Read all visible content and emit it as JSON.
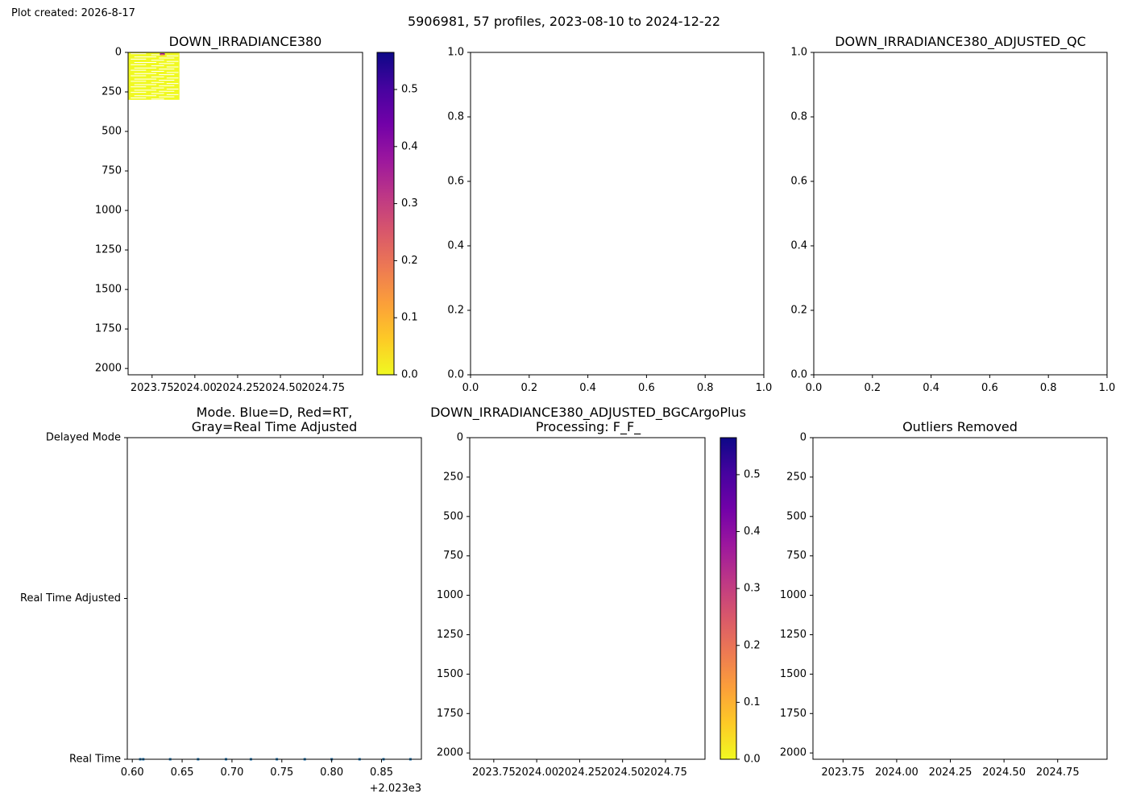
{
  "plot_created": "Plot created: 2026-8-17",
  "suptitle": "5906981, 57 profiles, 2023-08-10 to 2024-12-22",
  "colors": {
    "mode_points": "#1f77b4",
    "colormap": [
      "#f0f921",
      "#fdca26",
      "#fb9f3a",
      "#ed7953",
      "#d8576b",
      "#bd3786",
      "#9c179e",
      "#7201a8",
      "#46039f",
      "#0d0887"
    ],
    "frame": "#000000"
  },
  "chart_data": [
    {
      "id": "top-left",
      "type": "heatmap",
      "title": "DOWN_IRRADIANCE380",
      "x_ticks": [
        "2023.75",
        "2024.00",
        "2024.25",
        "2024.50",
        "2024.75"
      ],
      "x_tick_values": [
        2023.75,
        2024.0,
        2024.25,
        2024.5,
        2024.75
      ],
      "xlim": [
        2023.61,
        2024.98
      ],
      "y_ticks": [
        "0",
        "250",
        "500",
        "750",
        "1000",
        "1250",
        "1500",
        "1750",
        "2000"
      ],
      "y_tick_values": [
        0,
        250,
        500,
        750,
        1000,
        1250,
        1500,
        1750,
        2000
      ],
      "ylim": [
        2040,
        0
      ],
      "y_inverted": true,
      "data_extent": {
        "x": [
          2023.61,
          2023.91
        ],
        "depth": [
          0,
          300
        ]
      },
      "hot_spot": {
        "x": 2023.81,
        "depth": [
          0,
          20
        ],
        "value": 0.4
      },
      "colorbar": {
        "ticks": [
          "0.0",
          "0.1",
          "0.2",
          "0.3",
          "0.4",
          "0.5"
        ],
        "tick_values": [
          0,
          0.1,
          0.2,
          0.3,
          0.4,
          0.5
        ],
        "range": [
          0,
          0.565
        ]
      }
    },
    {
      "id": "top-middle",
      "type": "scatter",
      "title": "",
      "x_ticks": [
        "0.0",
        "0.2",
        "0.4",
        "0.6",
        "0.8",
        "1.0"
      ],
      "y_ticks": [
        "0.0",
        "0.2",
        "0.4",
        "0.6",
        "0.8",
        "1.0"
      ],
      "xlim": [
        0,
        1
      ],
      "ylim": [
        0,
        1
      ]
    },
    {
      "id": "top-right",
      "type": "scatter",
      "title": "DOWN_IRRADIANCE380_ADJUSTED_QC",
      "x_ticks": [
        "0.0",
        "0.2",
        "0.4",
        "0.6",
        "0.8",
        "1.0"
      ],
      "y_ticks": [
        "0.0",
        "0.2",
        "0.4",
        "0.6",
        "0.8",
        "1.0"
      ],
      "xlim": [
        0,
        1
      ],
      "ylim": [
        0,
        1
      ]
    },
    {
      "id": "bottom-left",
      "type": "scatter",
      "title": "Mode. Blue=D, Red=RT,\nGray=Real Time Adjusted",
      "x_ticks": [
        "0.60",
        "0.65",
        "0.70",
        "0.75",
        "0.80",
        "0.85"
      ],
      "x_tick_values": [
        2023.6,
        2023.65,
        2023.7,
        2023.75,
        2023.8,
        2023.85
      ],
      "x_offset_label": "+2.023e3",
      "xlim": [
        2023.595,
        2023.89
      ],
      "y_ticks": [
        "Delayed Mode",
        "Real Time Adjusted",
        "Real Time"
      ],
      "y_tick_values": [
        2,
        1,
        0
      ],
      "ylim": [
        0,
        2
      ],
      "points_x": [
        2023.608,
        2023.611,
        2023.638,
        2023.666,
        2023.694,
        2023.719,
        2023.745,
        2023.773,
        2023.8,
        2023.828,
        2023.852,
        2023.879
      ],
      "points_y": [
        0,
        0,
        0,
        0,
        0,
        0,
        0,
        0,
        0,
        0,
        0,
        0
      ]
    },
    {
      "id": "bottom-middle",
      "type": "heatmap",
      "title": "DOWN_IRRADIANCE380_ADJUSTED_BGCArgoPlus\nProcessing: F_F_",
      "x_ticks": [
        "2023.75",
        "2024.00",
        "2024.25",
        "2024.50",
        "2024.75"
      ],
      "x_tick_values": [
        2023.75,
        2024.0,
        2024.25,
        2024.5,
        2024.75
      ],
      "xlim": [
        2023.61,
        2024.98
      ],
      "y_ticks": [
        "0",
        "250",
        "500",
        "750",
        "1000",
        "1250",
        "1500",
        "1750",
        "2000"
      ],
      "y_tick_values": [
        0,
        250,
        500,
        750,
        1000,
        1250,
        1500,
        1750,
        2000
      ],
      "ylim": [
        2040,
        0
      ],
      "y_inverted": true,
      "colorbar": {
        "ticks": [
          "0.0",
          "0.1",
          "0.2",
          "0.3",
          "0.4",
          "0.5"
        ],
        "tick_values": [
          0,
          0.1,
          0.2,
          0.3,
          0.4,
          0.5
        ],
        "range": [
          0,
          0.565
        ]
      }
    },
    {
      "id": "bottom-right",
      "type": "scatter",
      "title": "Outliers Removed",
      "x_ticks": [
        "2023.75",
        "2024.00",
        "2024.25",
        "2024.50",
        "2024.75"
      ],
      "x_tick_values": [
        2023.75,
        2024.0,
        2024.25,
        2024.5,
        2024.75
      ],
      "xlim": [
        2023.61,
        2024.98
      ],
      "y_ticks": [
        "0",
        "250",
        "500",
        "750",
        "1000",
        "1250",
        "1500",
        "1750",
        "2000"
      ],
      "y_tick_values": [
        0,
        250,
        500,
        750,
        1000,
        1250,
        1500,
        1750,
        2000
      ],
      "ylim": [
        2040,
        0
      ],
      "y_inverted": true
    }
  ]
}
